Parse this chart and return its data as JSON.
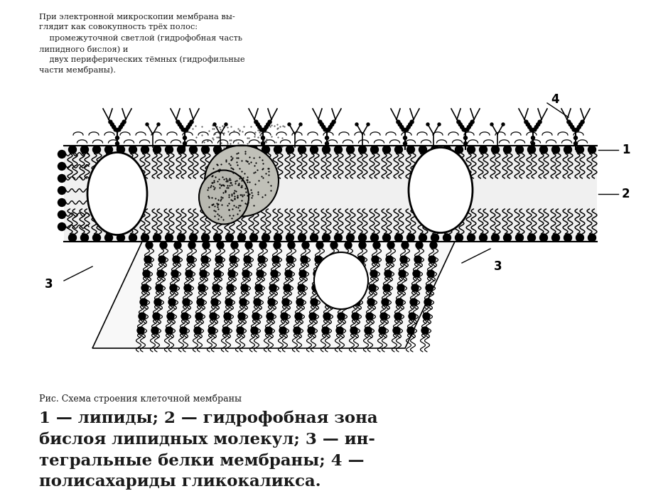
{
  "bg_color": "#ffffff",
  "text_color": "#1a1a1a",
  "top_text_lines": [
    "При электронной микроскопии мембрана вы-",
    "глядит как совокупность трёх полос:",
    "    промежуточной светлой (гидрофобная часть",
    "липидного бислоя) и",
    "    двух периферических тёмных (гидрофильные",
    "части мембраны)."
  ],
  "caption_small": "Рис. Схема строения клеточной мембраны",
  "caption_large_lines": [
    "1 — липиды; 2 — гидрофобная зона",
    "бислоя липидных молекул; 3 — ин-",
    "тегральные белки мембраны; 4 —",
    "полисахариды гликокаликса."
  ],
  "label_1": "1",
  "label_2": "2",
  "label_3": "3",
  "label_4": "4"
}
